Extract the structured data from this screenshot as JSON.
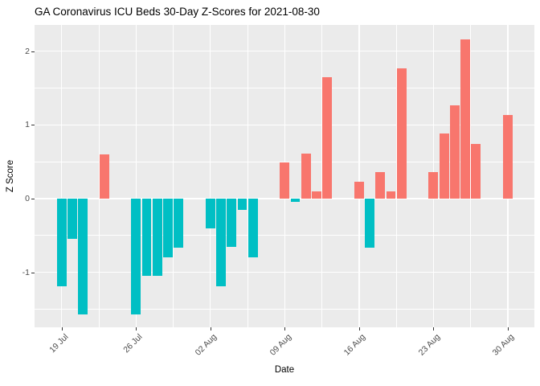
{
  "title": "GA Coronavirus ICU Beds 30-Day Z-Scores for 2021-08-30",
  "colors": {
    "positive_bar": "#F8766D",
    "negative_bar": "#00BFC4",
    "panel_background": "#EBEBEB",
    "gridline": "#FFFFFF",
    "tick_label": "#4D4D4D",
    "tick_mark": "#333333",
    "title_text": "#000000"
  },
  "chart_data": {
    "type": "bar",
    "title": "GA Coronavirus ICU Beds 30-Day Z-Scores for 2021-08-30",
    "xlabel": "Date",
    "ylabel": "Z Score",
    "legend": "none",
    "grid": "on",
    "x_tick_labels": [
      "19 Jul",
      "26 Jul",
      "02 Aug",
      "09 Aug",
      "16 Aug",
      "23 Aug",
      "30 Aug"
    ],
    "x_tick_days": [
      0,
      7,
      14,
      21,
      28,
      35,
      42
    ],
    "x_minor_days": [
      3.5,
      10.5,
      17.5,
      24.5,
      31.5,
      38.5
    ],
    "y_tick_labels": [
      "-1",
      "0",
      "1",
      "2"
    ],
    "y_ticks": [
      -1,
      0,
      1,
      2
    ],
    "y_minor_ticks": [
      -1.5,
      -0.5,
      0.5,
      1.5
    ],
    "ylim": [
      -1.745,
      2.355
    ],
    "xlim_days": [
      -2.55,
      44.5
    ],
    "bar_width_days": 0.9,
    "points": [
      {
        "date": "2021-07-19",
        "day": 0,
        "z": -1.19
      },
      {
        "date": "2021-07-20",
        "day": 1,
        "z": -0.55
      },
      {
        "date": "2021-07-21",
        "day": 2,
        "z": -1.57
      },
      {
        "date": "2021-07-23",
        "day": 4,
        "z": 0.6
      },
      {
        "date": "2021-07-26",
        "day": 7,
        "z": -1.57
      },
      {
        "date": "2021-07-27",
        "day": 8,
        "z": -1.05
      },
      {
        "date": "2021-07-28",
        "day": 9,
        "z": -1.05
      },
      {
        "date": "2021-07-29",
        "day": 10,
        "z": -0.8
      },
      {
        "date": "2021-07-30",
        "day": 11,
        "z": -0.67
      },
      {
        "date": "2021-08-02",
        "day": 14,
        "z": -0.4
      },
      {
        "date": "2021-08-03",
        "day": 15,
        "z": -1.19
      },
      {
        "date": "2021-08-04",
        "day": 16,
        "z": -0.66
      },
      {
        "date": "2021-08-05",
        "day": 17,
        "z": -0.15
      },
      {
        "date": "2021-08-06",
        "day": 18,
        "z": -0.8
      },
      {
        "date": "2021-08-09",
        "day": 21,
        "z": 0.49
      },
      {
        "date": "2021-08-10",
        "day": 22,
        "z": -0.04
      },
      {
        "date": "2021-08-11",
        "day": 23,
        "z": 0.61
      },
      {
        "date": "2021-08-12",
        "day": 24,
        "z": 0.1
      },
      {
        "date": "2021-08-13",
        "day": 25,
        "z": 1.65
      },
      {
        "date": "2021-08-16",
        "day": 28,
        "z": 0.23
      },
      {
        "date": "2021-08-17",
        "day": 29,
        "z": -0.67
      },
      {
        "date": "2021-08-18",
        "day": 30,
        "z": 0.36
      },
      {
        "date": "2021-08-19",
        "day": 31,
        "z": 0.1
      },
      {
        "date": "2021-08-20",
        "day": 32,
        "z": 1.77
      },
      {
        "date": "2021-08-23",
        "day": 35,
        "z": 0.36
      },
      {
        "date": "2021-08-24",
        "day": 36,
        "z": 0.88
      },
      {
        "date": "2021-08-25",
        "day": 37,
        "z": 1.26
      },
      {
        "date": "2021-08-26",
        "day": 38,
        "z": 2.16
      },
      {
        "date": "2021-08-27",
        "day": 39,
        "z": 0.74
      },
      {
        "date": "2021-08-30",
        "day": 42,
        "z": 1.13
      }
    ]
  }
}
